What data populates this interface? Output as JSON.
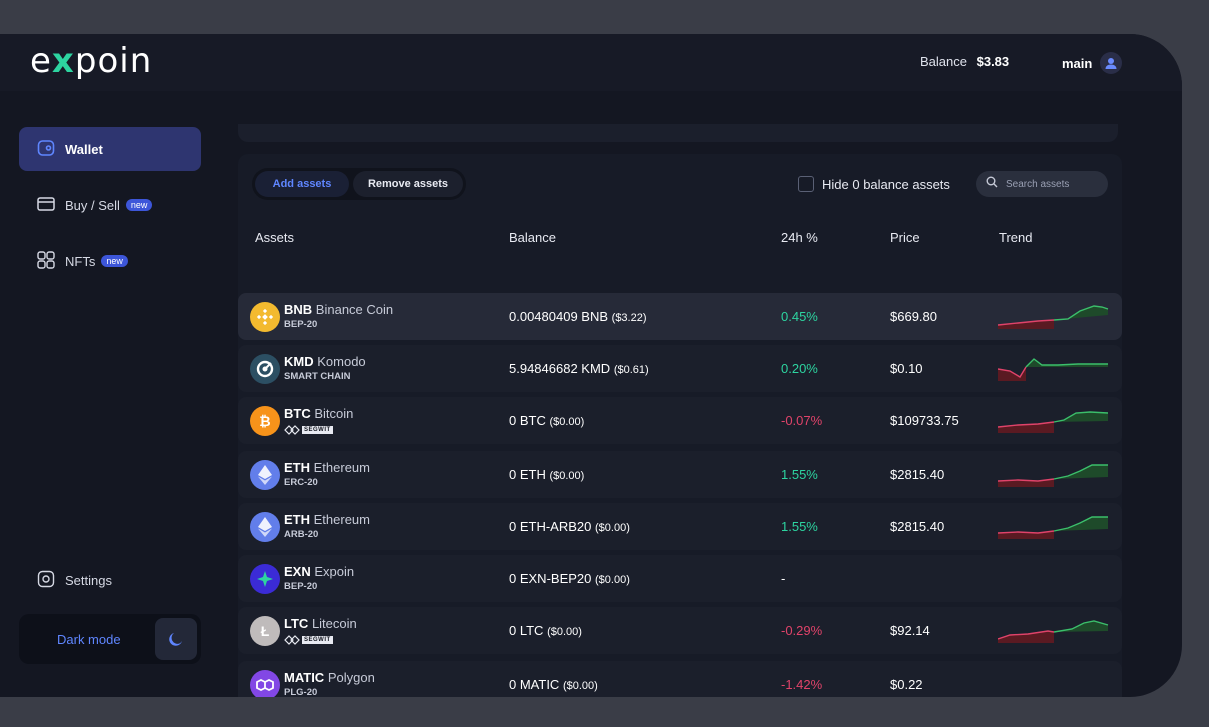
{
  "app": {
    "logo": "expoin"
  },
  "header": {
    "balance_label": "Balance",
    "balance_value": "$3.83",
    "account_name": "main"
  },
  "sidebar": {
    "items": [
      {
        "label": "Wallet",
        "icon": "wallet-icon",
        "active": true
      },
      {
        "label": "Buy / Sell",
        "icon": "card-icon",
        "badge": "new"
      },
      {
        "label": "NFTs",
        "icon": "grid-icon",
        "badge": "new"
      }
    ],
    "settings_label": "Settings",
    "dark_mode_label": "Dark mode"
  },
  "toolbar": {
    "add_assets": "Add assets",
    "remove_assets": "Remove assets",
    "hide_zero_label": "Hide 0 balance assets",
    "search_placeholder": "Search assets"
  },
  "table": {
    "headers": {
      "assets": "Assets",
      "balance": "Balance",
      "change": "24h %",
      "price": "Price",
      "trend": "Trend"
    },
    "rows": [
      {
        "ticker": "BNB",
        "name": "Binance Coin",
        "network": "BEP-20",
        "balance": "0.00480409 BNB",
        "balance_usd": "($3.22)",
        "change": "0.45%",
        "price": "$669.80",
        "color": "#f3ba2f"
      },
      {
        "ticker": "KMD",
        "name": "Komodo",
        "network": "SMART CHAIN",
        "balance": "5.94846682 KMD",
        "balance_usd": "($0.61)",
        "change": "0.20%",
        "price": "$0.10",
        "color": "#2c4f63"
      },
      {
        "ticker": "BTC",
        "name": "Bitcoin",
        "network": "SEGWIT",
        "balance": "0 BTC",
        "balance_usd": "($0.00)",
        "change": "-0.07%",
        "price": "$109733.75",
        "color": "#f7931a"
      },
      {
        "ticker": "ETH",
        "name": "Ethereum",
        "network": "ERC-20",
        "balance": "0 ETH",
        "balance_usd": "($0.00)",
        "change": "1.55%",
        "price": "$2815.40",
        "color": "#627eea"
      },
      {
        "ticker": "ETH",
        "name": "Ethereum",
        "network": "ARB-20",
        "balance": "0 ETH-ARB20",
        "balance_usd": "($0.00)",
        "change": "1.55%",
        "price": "$2815.40",
        "color": "#627eea"
      },
      {
        "ticker": "EXN",
        "name": "Expoin",
        "network": "BEP-20",
        "balance": "0 EXN-BEP20",
        "balance_usd": "($0.00)",
        "change": "-",
        "price": "",
        "color": "#3b2bd6"
      },
      {
        "ticker": "LTC",
        "name": "Litecoin",
        "network": "SEGWIT",
        "balance": "0 LTC",
        "balance_usd": "($0.00)",
        "change": "-0.29%",
        "price": "$92.14",
        "color": "#bfbbbb"
      },
      {
        "ticker": "MATIC",
        "name": "Polygon",
        "network": "PLG-20",
        "balance": "0 MATIC",
        "balance_usd": "($0.00)",
        "change": "-1.42%",
        "price": "$0.22",
        "color": "#8247e5"
      }
    ]
  },
  "colors": {
    "accent": "#5f86ff",
    "positive": "#2dd4a0",
    "negative": "#e0436a",
    "active_nav": "#2e3570"
  }
}
